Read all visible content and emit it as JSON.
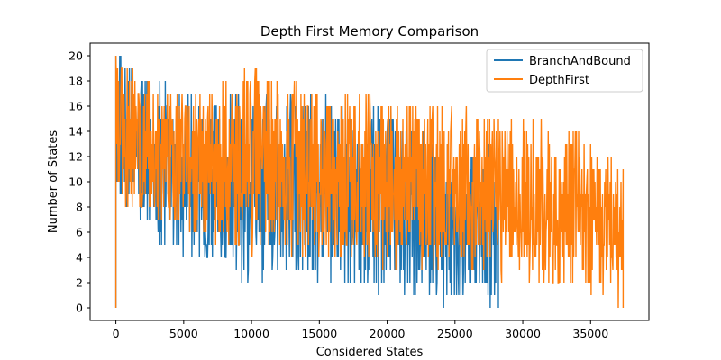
{
  "chart_data": {
    "type": "line",
    "title": "Depth First Memory Comparison",
    "xlabel": "Considered States",
    "ylabel": "Number of States",
    "xlim": [
      -1900,
      39300
    ],
    "ylim": [
      -1,
      21
    ],
    "xticks": [
      0,
      5000,
      10000,
      15000,
      20000,
      25000,
      30000,
      35000
    ],
    "yticks": [
      0,
      2,
      4,
      6,
      8,
      10,
      12,
      14,
      16,
      18,
      20
    ],
    "grid": false,
    "legend_position": "top-right",
    "series": [
      {
        "name": "BranchAndBound",
        "color": "#1f77b4",
        "length": 28200,
        "start_value": 0,
        "peak_value": 20,
        "envelope_x": [
          0,
          5000,
          10000,
          15000,
          20000,
          25000,
          28200
        ],
        "envelope_max": [
          20,
          17,
          17,
          17,
          16,
          13,
          13
        ],
        "envelope_min": [
          8,
          4,
          2,
          2,
          1,
          0,
          0
        ]
      },
      {
        "name": "DepthFirst",
        "color": "#ff7f0e",
        "length": 37400,
        "start_value": 0,
        "peak_value": 20,
        "envelope_x": [
          0,
          5000,
          10000,
          15000,
          20000,
          25000,
          30000,
          35000,
          37400
        ],
        "envelope_max": [
          20,
          17,
          19,
          17,
          17,
          16,
          15,
          14,
          11
        ],
        "envelope_min": [
          8,
          6,
          4,
          4,
          3,
          3,
          2,
          1,
          0
        ]
      }
    ]
  }
}
